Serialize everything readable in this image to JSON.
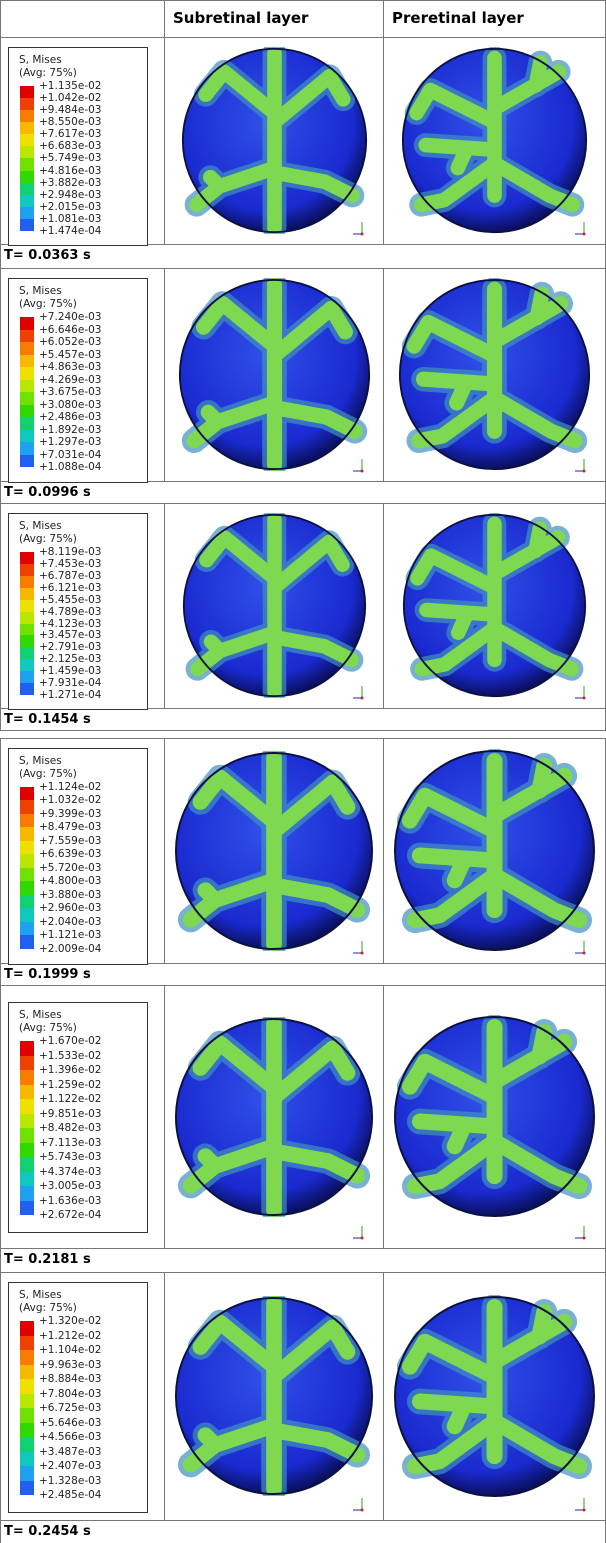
{
  "header": {
    "columns": [
      "Subretinal layer",
      "Preretinal layer"
    ]
  },
  "rows": [
    {
      "legend_title": "S, Mises",
      "legend_subtitle": "(Avg: 75%)",
      "legend_values": [
        "+1.135e-02",
        "+1.042e-02",
        "+9.484e-03",
        "+8.550e-03",
        "+7.617e-03",
        "+6.683e-03",
        "+5.749e-03",
        "+4.816e-03",
        "+3.882e-03",
        "+2.948e-03",
        "+2.015e-03",
        "+1.081e-03",
        "+1.474e-04"
      ],
      "time": "T= 0.0363 s"
    },
    {
      "legend_title": "S, Mises",
      "legend_subtitle": "(Avg: 75%)",
      "legend_values": [
        "+7.240e-03",
        "+6.646e-03",
        "+6.052e-03",
        "+5.457e-03",
        "+4.863e-03",
        "+4.269e-03",
        "+3.675e-03",
        "+3.080e-03",
        "+2.486e-03",
        "+1.892e-03",
        "+1.297e-03",
        "+7.031e-04",
        "+1.088e-04"
      ],
      "time": "T= 0.0996 s"
    },
    {
      "legend_title": "S, Mises",
      "legend_subtitle": "(Avg: 75%)",
      "legend_values": [
        "+8.119e-03",
        "+7.453e-03",
        "+6.787e-03",
        "+6.121e-03",
        "+5.455e-03",
        "+4.789e-03",
        "+4.123e-03",
        "+3.457e-03",
        "+2.791e-03",
        "+2.125e-03",
        "+1.459e-03",
        "+7.931e-04",
        "+1.271e-04"
      ],
      "time": "T= 0.1454 s"
    },
    {
      "legend_title": "S, Mises",
      "legend_subtitle": "(Avg: 75%)",
      "legend_values": [
        "+1.124e-02",
        "+1.032e-02",
        "+9.399e-03",
        "+8.479e-03",
        "+7.559e-03",
        "+6.639e-03",
        "+5.720e-03",
        "+4.800e-03",
        "+3.880e-03",
        "+2.960e-03",
        "+2.040e-03",
        "+1.121e-03",
        "+2.009e-04"
      ],
      "time": "T= 0.1999 s"
    },
    {
      "legend_title": "S, Mises",
      "legend_subtitle": "(Avg: 75%)",
      "legend_values": [
        "+1.670e-02",
        "+1.533e-02",
        "+1.396e-02",
        "+1.259e-02",
        "+1.122e-02",
        "+9.851e-03",
        "+8.482e-03",
        "+7.113e-03",
        "+5.743e-03",
        "+4.374e-03",
        "+3.005e-03",
        "+1.636e-03",
        "+2.672e-04"
      ],
      "time": "T= 0.2181 s"
    },
    {
      "legend_title": "S, Mises",
      "legend_subtitle": "(Avg: 75%)",
      "legend_values": [
        "+1.320e-02",
        "+1.212e-02",
        "+1.104e-02",
        "+9.963e-03",
        "+8.884e-03",
        "+7.804e-03",
        "+6.725e-03",
        "+5.646e-03",
        "+4.566e-03",
        "+3.487e-03",
        "+2.407e-03",
        "+1.328e-03",
        "+2.485e-04"
      ],
      "time": "T= 0.2454 s"
    }
  ]
}
